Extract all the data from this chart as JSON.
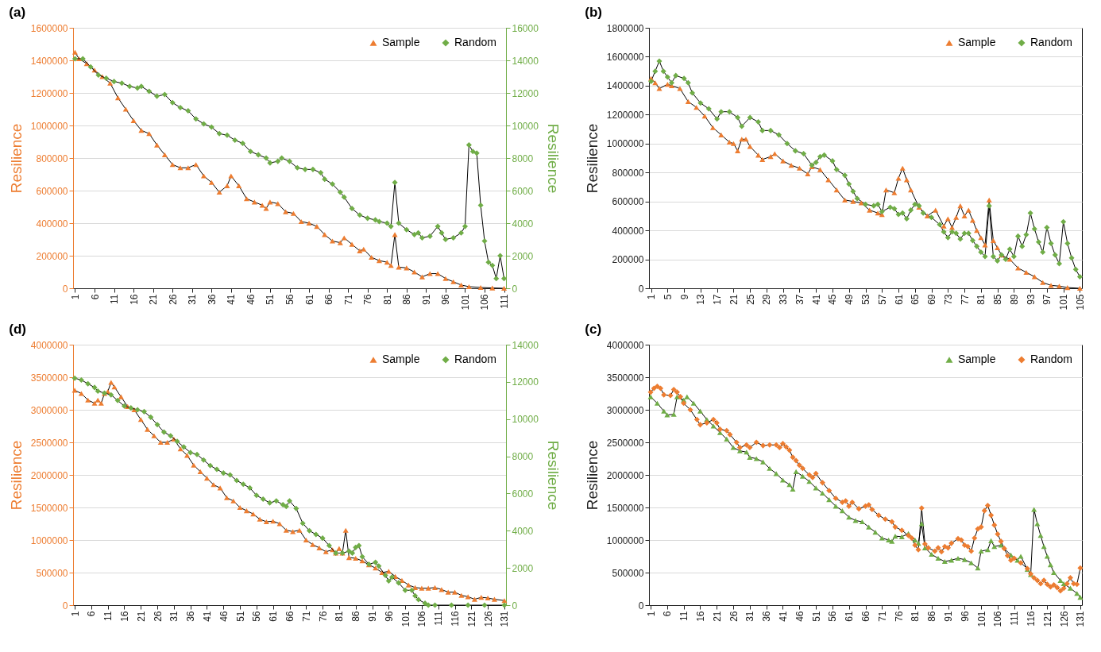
{
  "chart_data": [
    {
      "type": "line",
      "title": "(a)",
      "ylabel": "Resilience",
      "y2label": "Resilience",
      "xlim": [
        0.5,
        111.5
      ],
      "xticks": [
        1,
        6,
        11,
        16,
        21,
        26,
        31,
        36,
        41,
        46,
        51,
        56,
        61,
        66,
        71,
        76,
        81,
        86,
        91,
        96,
        101,
        106,
        111
      ],
      "ylim": [
        0,
        1600000
      ],
      "yticks": [
        0,
        200000,
        400000,
        600000,
        800000,
        1000000,
        1200000,
        1400000,
        1600000
      ],
      "y2lim": [
        0,
        16000
      ],
      "y2ticks": [
        0,
        2000,
        4000,
        6000,
        8000,
        10000,
        12000,
        14000,
        16000
      ],
      "grid": "y",
      "legend": "top right",
      "series": [
        {
          "name": "Sample",
          "color": "#ed7d31",
          "marker": "triangle",
          "x": [
            1,
            2,
            4,
            6,
            8,
            10,
            12,
            14,
            16,
            18,
            20,
            22,
            24,
            26,
            28,
            30,
            32,
            34,
            36,
            38,
            40,
            41,
            43,
            45,
            47,
            49,
            50,
            51,
            53,
            55,
            57,
            59,
            61,
            63,
            65,
            67,
            69,
            70,
            72,
            74,
            75,
            77,
            79,
            81,
            82,
            83,
            84,
            86,
            88,
            90,
            92,
            94,
            96,
            98,
            100,
            102,
            105,
            108,
            111
          ],
          "values": [
            1450000,
            1410000,
            1380000,
            1340000,
            1300000,
            1260000,
            1170000,
            1100000,
            1030000,
            970000,
            950000,
            880000,
            820000,
            760000,
            740000,
            740000,
            760000,
            690000,
            650000,
            590000,
            630000,
            690000,
            630000,
            550000,
            530000,
            510000,
            490000,
            530000,
            520000,
            470000,
            460000,
            410000,
            400000,
            380000,
            330000,
            290000,
            280000,
            310000,
            270000,
            230000,
            240000,
            190000,
            170000,
            160000,
            140000,
            330000,
            130000,
            125000,
            100000,
            70000,
            90000,
            90000,
            60000,
            40000,
            20000,
            10000,
            5000,
            2000,
            0
          ]
        },
        {
          "name": "Random",
          "color": "#70ad47",
          "marker": "diamond",
          "axis": "y2",
          "x": [
            1,
            3,
            5,
            7,
            9,
            11,
            13,
            15,
            17,
            18,
            20,
            22,
            24,
            26,
            28,
            30,
            32,
            34,
            36,
            38,
            40,
            42,
            44,
            46,
            48,
            50,
            51,
            53,
            54,
            56,
            58,
            60,
            62,
            64,
            65,
            67,
            69,
            70,
            72,
            74,
            76,
            78,
            79,
            81,
            82,
            83,
            84,
            86,
            88,
            89,
            90,
            92,
            94,
            95,
            96,
            98,
            100,
            101,
            102,
            103,
            104,
            105,
            106,
            107,
            108,
            109,
            110,
            111
          ],
          "values": [
            14100,
            14100,
            13600,
            13100,
            12900,
            12700,
            12600,
            12400,
            12300,
            12400,
            12100,
            11800,
            11900,
            11400,
            11100,
            10900,
            10400,
            10100,
            9900,
            9500,
            9400,
            9100,
            8900,
            8400,
            8200,
            8000,
            7700,
            7800,
            8000,
            7800,
            7400,
            7300,
            7300,
            7100,
            6700,
            6400,
            5900,
            5600,
            4900,
            4500,
            4300,
            4200,
            4100,
            4000,
            3800,
            6500,
            4000,
            3600,
            3300,
            3400,
            3100,
            3200,
            3800,
            3400,
            3000,
            3100,
            3400,
            3800,
            8800,
            8400,
            8300,
            5100,
            2900,
            1600,
            1400,
            600,
            2000,
            600
          ]
        }
      ]
    },
    {
      "type": "line",
      "title": "(b)",
      "ylabel": "Resilience",
      "xlim": [
        0.5,
        105.5
      ],
      "xticks": [
        1,
        5,
        9,
        13,
        17,
        21,
        25,
        29,
        33,
        37,
        41,
        45,
        49,
        53,
        57,
        61,
        65,
        69,
        73,
        77,
        81,
        85,
        89,
        93,
        97,
        101,
        105
      ],
      "ylim": [
        0,
        1800000
      ],
      "yticks": [
        0,
        200000,
        400000,
        600000,
        800000,
        1000000,
        1200000,
        1400000,
        1600000,
        1800000
      ],
      "grid": "y",
      "legend": "top right",
      "series": [
        {
          "name": "Sample",
          "color": "#ed7d31",
          "marker": "triangle",
          "x": [
            1,
            2,
            3,
            5,
            6,
            8,
            10,
            12,
            14,
            16,
            18,
            20,
            21,
            22,
            23,
            24,
            25,
            27,
            28,
            30,
            31,
            33,
            35,
            37,
            39,
            40,
            42,
            44,
            46,
            48,
            50,
            52,
            54,
            56,
            57,
            58,
            60,
            61,
            62,
            63,
            64,
            66,
            68,
            70,
            72,
            73,
            74,
            75,
            76,
            77,
            78,
            79,
            80,
            81,
            82,
            83,
            84,
            85,
            86,
            88,
            90,
            92,
            94,
            96,
            98,
            100,
            102,
            105
          ],
          "values": [
            1450000,
            1420000,
            1380000,
            1410000,
            1400000,
            1380000,
            1290000,
            1250000,
            1190000,
            1110000,
            1060000,
            1010000,
            1000000,
            950000,
            1030000,
            1030000,
            980000,
            920000,
            890000,
            910000,
            930000,
            880000,
            850000,
            830000,
            790000,
            840000,
            820000,
            750000,
            680000,
            610000,
            600000,
            590000,
            540000,
            520000,
            510000,
            680000,
            660000,
            760000,
            830000,
            750000,
            680000,
            560000,
            500000,
            540000,
            430000,
            480000,
            420000,
            490000,
            570000,
            500000,
            540000,
            470000,
            400000,
            350000,
            300000,
            610000,
            330000,
            280000,
            230000,
            200000,
            140000,
            110000,
            80000,
            40000,
            20000,
            15000,
            5000,
            0
          ]
        },
        {
          "name": "Random",
          "color": "#70ad47",
          "marker": "diamond",
          "x": [
            1,
            2,
            3,
            4,
            5,
            6,
            7,
            9,
            10,
            11,
            13,
            15,
            17,
            18,
            20,
            22,
            23,
            25,
            27,
            28,
            30,
            32,
            34,
            36,
            38,
            40,
            41,
            42,
            43,
            45,
            46,
            48,
            49,
            50,
            51,
            53,
            55,
            56,
            57,
            59,
            60,
            61,
            62,
            63,
            64,
            65,
            66,
            67,
            69,
            71,
            72,
            73,
            74,
            75,
            76,
            77,
            78,
            79,
            80,
            81,
            82,
            83,
            84,
            85,
            86,
            87,
            88,
            89,
            90,
            91,
            92,
            93,
            94,
            95,
            96,
            97,
            98,
            99,
            100,
            101,
            102,
            103,
            104,
            105
          ],
          "values": [
            1430000,
            1500000,
            1570000,
            1500000,
            1460000,
            1420000,
            1470000,
            1450000,
            1420000,
            1350000,
            1280000,
            1240000,
            1170000,
            1220000,
            1220000,
            1180000,
            1120000,
            1180000,
            1150000,
            1090000,
            1090000,
            1060000,
            1000000,
            950000,
            930000,
            850000,
            870000,
            910000,
            920000,
            880000,
            820000,
            780000,
            720000,
            670000,
            620000,
            580000,
            570000,
            580000,
            530000,
            560000,
            550000,
            510000,
            520000,
            480000,
            540000,
            580000,
            570000,
            520000,
            490000,
            440000,
            390000,
            350000,
            390000,
            380000,
            340000,
            380000,
            380000,
            330000,
            290000,
            250000,
            220000,
            570000,
            220000,
            190000,
            230000,
            200000,
            270000,
            220000,
            360000,
            290000,
            370000,
            520000,
            410000,
            320000,
            250000,
            420000,
            310000,
            230000,
            170000,
            460000,
            310000,
            210000,
            130000,
            80000
          ]
        }
      ]
    },
    {
      "type": "line",
      "title": "(d)",
      "ylabel": "Resilience",
      "y2label": "Resilience",
      "xlim": [
        0.5,
        131.5
      ],
      "xticks": [
        1,
        6,
        11,
        16,
        21,
        26,
        31,
        36,
        41,
        46,
        51,
        56,
        61,
        66,
        71,
        76,
        81,
        86,
        91,
        96,
        101,
        106,
        111,
        116,
        121,
        126,
        131
      ],
      "ylim": [
        0,
        4000000
      ],
      "yticks": [
        0,
        500000,
        1000000,
        1500000,
        2000000,
        2500000,
        3000000,
        3500000,
        4000000
      ],
      "y2lim": [
        0,
        14000
      ],
      "y2ticks": [
        0,
        2000,
        4000,
        6000,
        8000,
        10000,
        12000,
        14000
      ],
      "grid": "y",
      "legend": "top right",
      "series": [
        {
          "name": "Sample",
          "color": "#ed7d31",
          "marker": "triangle",
          "x": [
            1,
            3,
            5,
            7,
            8,
            9,
            10,
            11,
            12,
            13,
            15,
            17,
            19,
            21,
            23,
            25,
            27,
            29,
            31,
            33,
            35,
            37,
            39,
            41,
            43,
            45,
            47,
            49,
            51,
            53,
            55,
            57,
            59,
            61,
            63,
            65,
            67,
            69,
            71,
            73,
            75,
            77,
            79,
            80,
            81,
            82,
            83,
            84,
            86,
            88,
            90,
            92,
            94,
            96,
            98,
            100,
            102,
            104,
            106,
            108,
            110,
            112,
            114,
            116,
            118,
            120,
            122,
            124,
            126,
            128,
            131
          ],
          "values": [
            3300000,
            3250000,
            3150000,
            3100000,
            3150000,
            3100000,
            3250000,
            3280000,
            3420000,
            3350000,
            3200000,
            3050000,
            3000000,
            2850000,
            2700000,
            2600000,
            2500000,
            2500000,
            2550000,
            2400000,
            2300000,
            2150000,
            2050000,
            1950000,
            1850000,
            1800000,
            1650000,
            1600000,
            1500000,
            1450000,
            1400000,
            1320000,
            1280000,
            1290000,
            1250000,
            1150000,
            1130000,
            1150000,
            1000000,
            930000,
            880000,
            820000,
            850000,
            800000,
            870000,
            800000,
            1150000,
            730000,
            720000,
            680000,
            620000,
            570000,
            500000,
            520000,
            440000,
            380000,
            310000,
            270000,
            260000,
            260000,
            270000,
            240000,
            200000,
            200000,
            150000,
            130000,
            90000,
            120000,
            110000,
            90000,
            70000
          ]
        },
        {
          "name": "Random",
          "color": "#70ad47",
          "marker": "diamond",
          "axis": "y2",
          "x": [
            1,
            3,
            5,
            7,
            8,
            10,
            12,
            14,
            16,
            18,
            20,
            22,
            24,
            26,
            28,
            30,
            32,
            34,
            36,
            38,
            40,
            42,
            44,
            46,
            48,
            50,
            52,
            54,
            56,
            58,
            60,
            62,
            64,
            65,
            66,
            68,
            70,
            72,
            74,
            76,
            78,
            80,
            82,
            84,
            85,
            86,
            87,
            88,
            90,
            92,
            93,
            95,
            96,
            97,
            99,
            101,
            103,
            104,
            105,
            107,
            108,
            110,
            115,
            120,
            125,
            131
          ],
          "values": [
            12200,
            12100,
            11900,
            11700,
            11500,
            11400,
            11300,
            11000,
            10700,
            10600,
            10500,
            10400,
            10100,
            9700,
            9300,
            9100,
            8800,
            8500,
            8200,
            8100,
            7800,
            7500,
            7300,
            7100,
            7000,
            6700,
            6500,
            6300,
            5900,
            5700,
            5500,
            5600,
            5400,
            5300,
            5600,
            5200,
            4400,
            4000,
            3800,
            3600,
            3200,
            2800,
            2800,
            2900,
            2800,
            3100,
            3200,
            2600,
            2200,
            2300,
            2100,
            1600,
            1300,
            1500,
            1200,
            800,
            800,
            500,
            300,
            100,
            0,
            0,
            0,
            0,
            0,
            0
          ]
        }
      ]
    },
    {
      "type": "line",
      "title": "(c)",
      "ylabel": "Resilience",
      "xlim": [
        0.5,
        131.5
      ],
      "xticks": [
        1,
        6,
        11,
        16,
        21,
        26,
        31,
        36,
        41,
        46,
        51,
        56,
        61,
        66,
        71,
        76,
        81,
        86,
        91,
        96,
        101,
        106,
        111,
        116,
        121,
        126,
        131
      ],
      "ylim": [
        0,
        4000000
      ],
      "yticks": [
        0,
        500000,
        1000000,
        1500000,
        2000000,
        2500000,
        3000000,
        3500000,
        4000000
      ],
      "grid": "y",
      "legend": "top right",
      "series": [
        {
          "name": "Sample",
          "color": "#70ad47",
          "marker": "triangle",
          "x": [
            1,
            3,
            5,
            6,
            8,
            9,
            11,
            12,
            14,
            16,
            18,
            20,
            22,
            24,
            26,
            28,
            30,
            31,
            33,
            35,
            37,
            39,
            41,
            43,
            44,
            45,
            47,
            49,
            51,
            53,
            55,
            57,
            59,
            61,
            63,
            65,
            67,
            69,
            71,
            73,
            74,
            75,
            77,
            79,
            81,
            82,
            83,
            84,
            86,
            88,
            90,
            92,
            94,
            96,
            98,
            100,
            101,
            103,
            104,
            105,
            107,
            110,
            112,
            113,
            115,
            116,
            117,
            118,
            119,
            120,
            121,
            122,
            123,
            125,
            126,
            128,
            130,
            131
          ],
          "values": [
            3200000,
            3100000,
            2980000,
            2920000,
            2930000,
            3200000,
            3150000,
            3200000,
            3100000,
            2980000,
            2850000,
            2750000,
            2650000,
            2550000,
            2420000,
            2370000,
            2350000,
            2270000,
            2250000,
            2200000,
            2100000,
            2020000,
            1920000,
            1850000,
            1780000,
            2050000,
            1980000,
            1900000,
            1800000,
            1720000,
            1620000,
            1520000,
            1450000,
            1350000,
            1300000,
            1280000,
            1200000,
            1120000,
            1030000,
            1000000,
            980000,
            1060000,
            1050000,
            1100000,
            1000000,
            950000,
            1250000,
            880000,
            780000,
            720000,
            670000,
            690000,
            720000,
            700000,
            650000,
            570000,
            830000,
            850000,
            990000,
            900000,
            920000,
            770000,
            690000,
            750000,
            550000,
            470000,
            1470000,
            1250000,
            1070000,
            900000,
            750000,
            620000,
            500000,
            380000,
            330000,
            260000,
            180000,
            120000
          ]
        },
        {
          "name": "Random",
          "color": "#ed7d31",
          "marker": "diamond",
          "x": [
            1,
            2,
            3,
            4,
            5,
            7,
            8,
            9,
            10,
            11,
            13,
            15,
            16,
            18,
            20,
            21,
            22,
            24,
            25,
            27,
            28,
            30,
            31,
            33,
            35,
            37,
            39,
            40,
            41,
            42,
            43,
            44,
            45,
            46,
            47,
            49,
            50,
            51,
            53,
            55,
            57,
            59,
            60,
            61,
            62,
            64,
            66,
            67,
            68,
            70,
            72,
            74,
            75,
            77,
            79,
            80,
            81,
            82,
            83,
            84,
            85,
            87,
            88,
            89,
            90,
            91,
            92,
            94,
            95,
            96,
            97,
            98,
            99,
            100,
            101,
            102,
            103,
            104,
            105,
            106,
            107,
            108,
            109,
            110,
            111,
            113,
            115,
            116,
            117,
            118,
            119,
            120,
            121,
            122,
            123,
            124,
            125,
            126,
            127,
            128,
            129,
            130,
            131
          ],
          "values": [
            3270000,
            3330000,
            3360000,
            3330000,
            3230000,
            3220000,
            3310000,
            3270000,
            3200000,
            3100000,
            3000000,
            2850000,
            2770000,
            2800000,
            2850000,
            2800000,
            2700000,
            2680000,
            2620000,
            2500000,
            2420000,
            2460000,
            2420000,
            2500000,
            2450000,
            2460000,
            2460000,
            2420000,
            2480000,
            2430000,
            2380000,
            2270000,
            2220000,
            2150000,
            2100000,
            2000000,
            1960000,
            2020000,
            1880000,
            1760000,
            1640000,
            1580000,
            1600000,
            1520000,
            1580000,
            1480000,
            1520000,
            1540000,
            1470000,
            1380000,
            1320000,
            1280000,
            1200000,
            1150000,
            1070000,
            1030000,
            920000,
            850000,
            1490000,
            940000,
            880000,
            830000,
            880000,
            820000,
            900000,
            880000,
            950000,
            1020000,
            1000000,
            920000,
            900000,
            830000,
            1030000,
            1170000,
            1200000,
            1450000,
            1530000,
            1380000,
            1230000,
            1090000,
            980000,
            870000,
            760000,
            690000,
            720000,
            650000,
            560000,
            480000,
            420000,
            380000,
            330000,
            380000,
            320000,
            280000,
            310000,
            270000,
            220000,
            260000,
            330000,
            420000,
            330000,
            320000,
            570000
          ]
        }
      ]
    }
  ]
}
